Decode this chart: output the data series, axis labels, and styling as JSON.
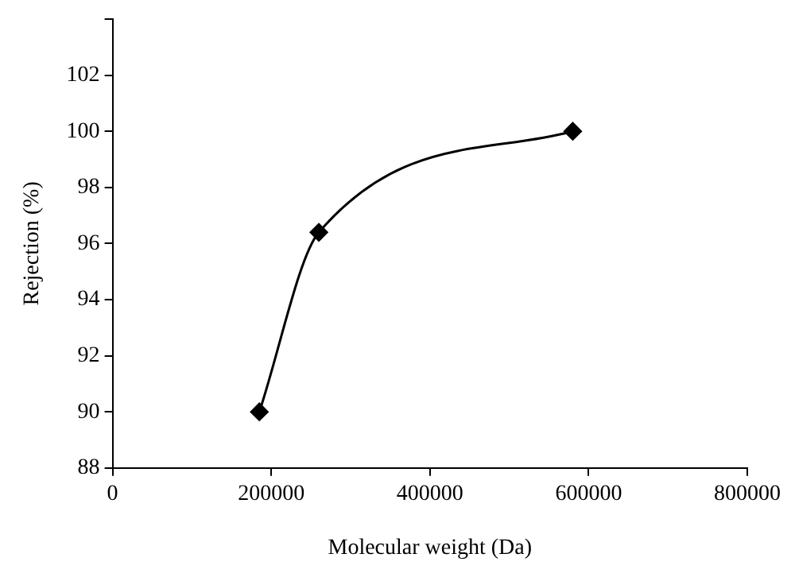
{
  "chart_data": {
    "type": "line",
    "xlabel": "Molecular weight (Da)",
    "ylabel": "Rejection (%)",
    "x": [
      185000,
      260000,
      580000
    ],
    "series": [
      {
        "color": "#000000",
        "values": [
          90,
          96.4,
          100
        ]
      }
    ],
    "xlim": [
      0,
      800000
    ],
    "xticks": [
      0,
      200000,
      400000,
      600000,
      800000
    ],
    "ylim": [
      88,
      104
    ],
    "yticks": [
      88,
      90,
      92,
      94,
      96,
      98,
      100,
      102,
      {
        "value": 104,
        "label": null
      }
    ],
    "grid": false,
    "legend": false,
    "marker": "diamond",
    "line_style": "solid"
  }
}
